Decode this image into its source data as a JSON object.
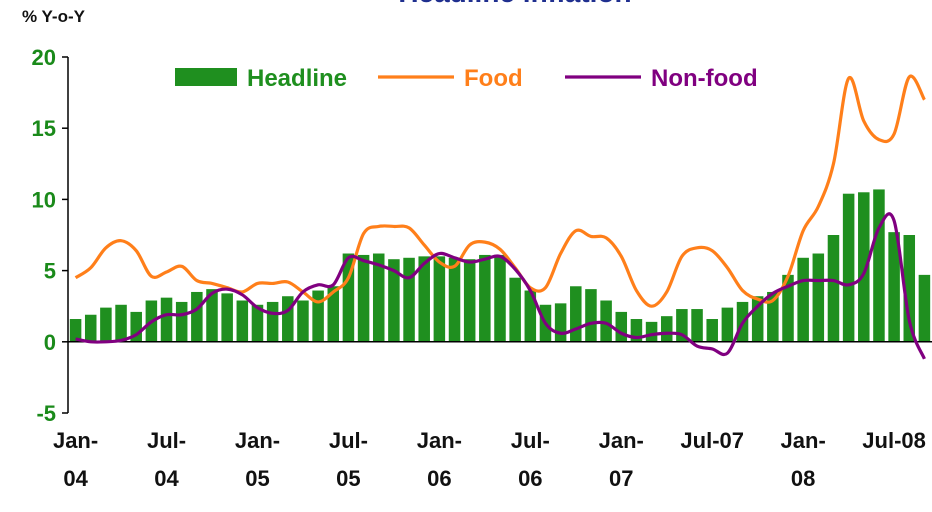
{
  "chart_data": {
    "type": "bar",
    "title": "Headline inflation",
    "y_label": "% Y-o-Y",
    "categories": [
      "Jan-\n04",
      null,
      null,
      null,
      null,
      null,
      "Jul-\n04",
      null,
      null,
      null,
      null,
      null,
      "Jan-\n05",
      null,
      null,
      null,
      null,
      null,
      "Jul-\n05",
      null,
      null,
      null,
      null,
      null,
      "Jan-\n06",
      null,
      null,
      null,
      null,
      null,
      "Jul-\n06",
      null,
      null,
      null,
      null,
      null,
      "Jan-\n07",
      null,
      null,
      null,
      null,
      null,
      "Jul-07",
      null,
      null,
      null,
      null,
      null,
      "Jan-\n08",
      null,
      null,
      null,
      null,
      null,
      "Jul-08",
      null,
      null
    ],
    "series": [
      {
        "name": "Headline",
        "type": "bar",
        "color": "#1f8f1f",
        "values": [
          1.6,
          1.9,
          2.4,
          2.6,
          2.1,
          2.9,
          3.1,
          2.8,
          3.5,
          3.7,
          3.4,
          2.9,
          2.6,
          2.8,
          3.2,
          2.9,
          3.6,
          3.9,
          6.2,
          6.1,
          6.2,
          5.8,
          5.9,
          6.0,
          6.0,
          5.9,
          5.8,
          6.1,
          6.1,
          4.5,
          3.6,
          2.6,
          2.7,
          3.9,
          3.7,
          2.9,
          2.1,
          1.6,
          1.4,
          1.8,
          2.3,
          2.3,
          1.6,
          2.4,
          2.8,
          3.2,
          3.5,
          4.7,
          5.9,
          6.2,
          7.5,
          10.4,
          10.5,
          10.7,
          7.7,
          7.5,
          4.7
        ]
      },
      {
        "name": "Food",
        "type": "line",
        "color": "#ff7f1a",
        "values": [
          4.5,
          5.2,
          6.6,
          7.1,
          6.4,
          4.6,
          4.9,
          5.3,
          4.3,
          4.1,
          3.8,
          3.5,
          4.1,
          4.1,
          4.2,
          3.5,
          2.8,
          3.5,
          4.5,
          7.6,
          8.1,
          8.1,
          8.0,
          6.8,
          5.6,
          5.3,
          6.8,
          7.0,
          6.5,
          5.2,
          3.8,
          3.8,
          6.2,
          7.8,
          7.4,
          7.3,
          6.0,
          3.6,
          2.5,
          3.5,
          6.0,
          6.6,
          6.4,
          5.2,
          3.6,
          3.0,
          2.9,
          4.6,
          7.8,
          9.5,
          12.5,
          18.5,
          15.5,
          14.2,
          14.6,
          18.6,
          17.0
        ]
      },
      {
        "name": "Non-food",
        "type": "line",
        "color": "#800080",
        "values": [
          0.2,
          0.0,
          0.0,
          0.1,
          0.5,
          1.4,
          1.9,
          1.9,
          2.3,
          3.4,
          3.7,
          3.3,
          2.4,
          2.0,
          2.2,
          3.5,
          4.0,
          4.0,
          5.9,
          5.7,
          5.4,
          5.0,
          4.5,
          5.5,
          6.2,
          5.9,
          5.6,
          5.8,
          6.0,
          5.1,
          3.6,
          1.3,
          0.6,
          0.9,
          1.3,
          1.3,
          0.6,
          0.3,
          0.5,
          0.6,
          0.5,
          -0.3,
          -0.5,
          -0.8,
          1.3,
          2.5,
          3.4,
          3.9,
          4.3,
          4.3,
          4.3,
          4.0,
          4.8,
          8.0,
          8.5,
          1.5,
          -1.2
        ]
      }
    ],
    "ylim": [
      -5,
      20
    ],
    "yticks": [
      -5,
      0,
      5,
      10,
      15,
      20
    ],
    "grid": false,
    "legend": "top",
    "tick_color": "#1a8a1a",
    "title_color": "#1f2f8f"
  }
}
